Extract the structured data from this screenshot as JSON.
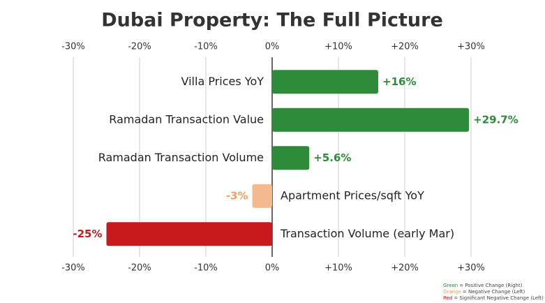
{
  "chart_data": {
    "type": "bar",
    "orientation": "horizontal",
    "title": "Dubai Property: The Full Picture",
    "categories": [
      "Villa Prices YoY",
      "Ramadan Transaction Value",
      "Ramadan Transaction Volume",
      "Apartment Prices/sqft YoY",
      "Transaction Volume (early Mar)"
    ],
    "values": [
      16,
      29.7,
      5.6,
      -3,
      -25
    ],
    "value_labels": [
      "+16%",
      "+29.7%",
      "+5.6%",
      "-3%",
      "-25%"
    ],
    "colors": [
      "#2e8b3a",
      "#2e8b3a",
      "#2e8b3a",
      "#f4b98c",
      "#c8191c"
    ],
    "xlim": [
      -30,
      30
    ],
    "xticks": [
      {
        "value": -30,
        "label": "-30%"
      },
      {
        "value": -20,
        "label": "-20%"
      },
      {
        "value": -10,
        "label": "-10%"
      },
      {
        "value": 0,
        "label": "0%"
      },
      {
        "value": 10,
        "label": "+10%"
      },
      {
        "value": 20,
        "label": "+20%"
      },
      {
        "value": 30,
        "label": "+30%"
      }
    ],
    "grid": true,
    "legend": [
      {
        "label": "Green",
        "description": "= Positive Change (Right)",
        "color": "#2e8b3a"
      },
      {
        "label": "Orange",
        "description": "= Negative Change (Left)",
        "color": "#f0a060"
      },
      {
        "label": "Red",
        "description": "= Significant Negative Change (Left)",
        "color": "#c8191c"
      }
    ]
  }
}
